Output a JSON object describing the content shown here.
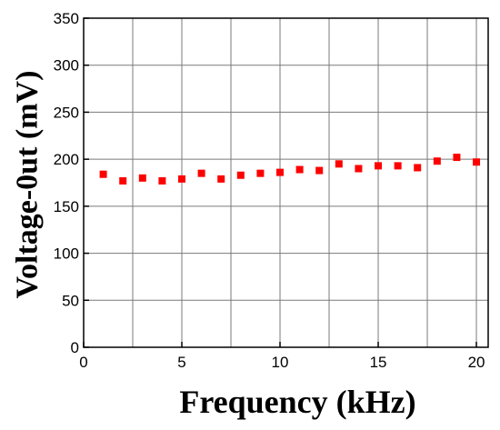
{
  "chart_data": {
    "type": "scatter",
    "title": "",
    "xlabel": "Frequency (kHz)",
    "ylabel": "Voltage-0ut (mV)",
    "xlim": [
      0,
      20.6
    ],
    "ylim": [
      0,
      350
    ],
    "xticks": [
      0,
      5,
      10,
      15,
      20
    ],
    "yticks": [
      0,
      50,
      100,
      150,
      200,
      250,
      300,
      350
    ],
    "x_minor_grid_step": 2.5,
    "grid": true,
    "legend": "none",
    "marker": "square",
    "series": [
      {
        "color": "#ff0000",
        "x": [
          1,
          2,
          3,
          4,
          5,
          6,
          7,
          8,
          9,
          10,
          11,
          12,
          13,
          14,
          15,
          16,
          17,
          18,
          19,
          20
        ],
        "y": [
          184,
          177,
          180,
          177,
          179,
          185,
          179,
          183,
          185,
          186,
          189,
          188,
          195,
          190,
          193,
          193,
          191,
          198,
          202,
          197
        ]
      }
    ]
  }
}
